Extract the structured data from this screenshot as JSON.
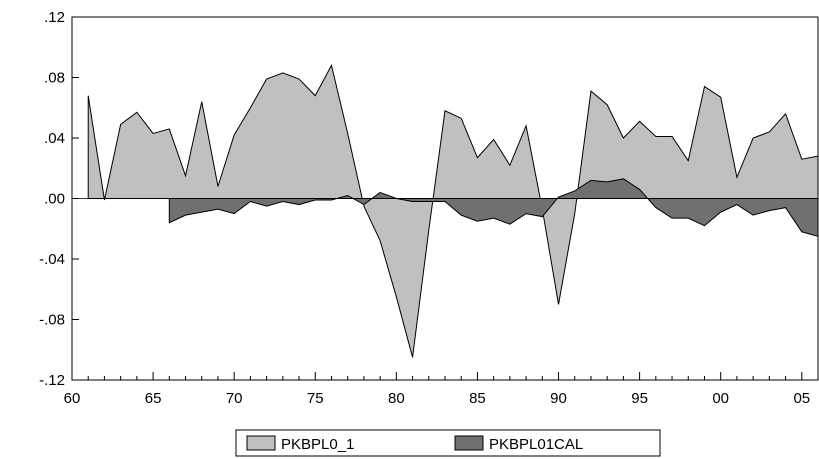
{
  "chart_data": {
    "type": "area",
    "title": "",
    "xlabel": "",
    "ylabel": "",
    "ylim": [
      -0.12,
      0.12
    ],
    "xlim": [
      1960,
      2006
    ],
    "y_ticks": [
      {
        "value": 0.12,
        "label": ".12"
      },
      {
        "value": 0.08,
        "label": ".08"
      },
      {
        "value": 0.04,
        "label": ".04"
      },
      {
        "value": 0.0,
        "label": ".00"
      },
      {
        "value": -0.04,
        "label": "-.04"
      },
      {
        "value": -0.08,
        "label": "-.08"
      },
      {
        "value": -0.12,
        "label": "-.12"
      }
    ],
    "x_ticks": [
      {
        "value": 1960,
        "label": "60"
      },
      {
        "value": 1965,
        "label": "65"
      },
      {
        "value": 1970,
        "label": "70"
      },
      {
        "value": 1975,
        "label": "75"
      },
      {
        "value": 1980,
        "label": "80"
      },
      {
        "value": 1985,
        "label": "85"
      },
      {
        "value": 1990,
        "label": "90"
      },
      {
        "value": 1995,
        "label": "95"
      },
      {
        "value": 2000,
        "label": "00"
      },
      {
        "value": 2005,
        "label": "05"
      }
    ],
    "grid": false,
    "legend_position": "bottom-center",
    "series": [
      {
        "name": "PKBPL0_1",
        "color": "#c0c0c0",
        "x": [
          1961,
          1962,
          1963,
          1964,
          1965,
          1966,
          1967,
          1968,
          1969,
          1970,
          1971,
          1972,
          1973,
          1974,
          1975,
          1976,
          1977,
          1978,
          1979,
          1980,
          1981,
          1982,
          1983,
          1984,
          1985,
          1986,
          1987,
          1988,
          1989,
          1990,
          1991,
          1992,
          1993,
          1994,
          1995,
          1996,
          1997,
          1998,
          1999,
          2000,
          2001,
          2002,
          2003,
          2004,
          2005,
          2006
        ],
        "values": [
          0.068,
          -0.001,
          0.049,
          0.057,
          0.043,
          0.046,
          0.015,
          0.064,
          0.008,
          0.042,
          0.06,
          0.079,
          0.083,
          0.079,
          0.068,
          0.088,
          0.043,
          -0.005,
          -0.028,
          -0.065,
          -0.105,
          -0.021,
          0.058,
          0.053,
          0.027,
          0.039,
          0.022,
          0.048,
          -0.007,
          -0.07,
          -0.01,
          0.071,
          0.062,
          0.04,
          0.051,
          0.041,
          0.041,
          0.025,
          0.074,
          0.067,
          0.014,
          0.04,
          0.044,
          0.056,
          0.026,
          0.028
        ]
      },
      {
        "name": "PKBPL01CAL",
        "color": "#707070",
        "x": [
          1966,
          1967,
          1968,
          1969,
          1970,
          1971,
          1972,
          1973,
          1974,
          1975,
          1976,
          1977,
          1978,
          1979,
          1980,
          1981,
          1982,
          1983,
          1984,
          1985,
          1986,
          1987,
          1988,
          1989,
          1990,
          1991,
          1992,
          1993,
          1994,
          1995,
          1996,
          1997,
          1998,
          1999,
          2000,
          2001,
          2002,
          2003,
          2004,
          2005,
          2006
        ],
        "values": [
          -0.016,
          -0.011,
          -0.009,
          -0.007,
          -0.01,
          -0.002,
          -0.005,
          -0.002,
          -0.004,
          -0.001,
          -0.001,
          0.002,
          -0.004,
          0.004,
          0.0,
          -0.002,
          -0.002,
          -0.002,
          -0.011,
          -0.015,
          -0.013,
          -0.017,
          -0.01,
          -0.012,
          0.001,
          0.005,
          0.012,
          0.011,
          0.013,
          0.006,
          -0.006,
          -0.013,
          -0.013,
          -0.018,
          -0.009,
          -0.004,
          -0.011,
          -0.008,
          -0.006,
          -0.022,
          -0.025
        ]
      }
    ]
  }
}
